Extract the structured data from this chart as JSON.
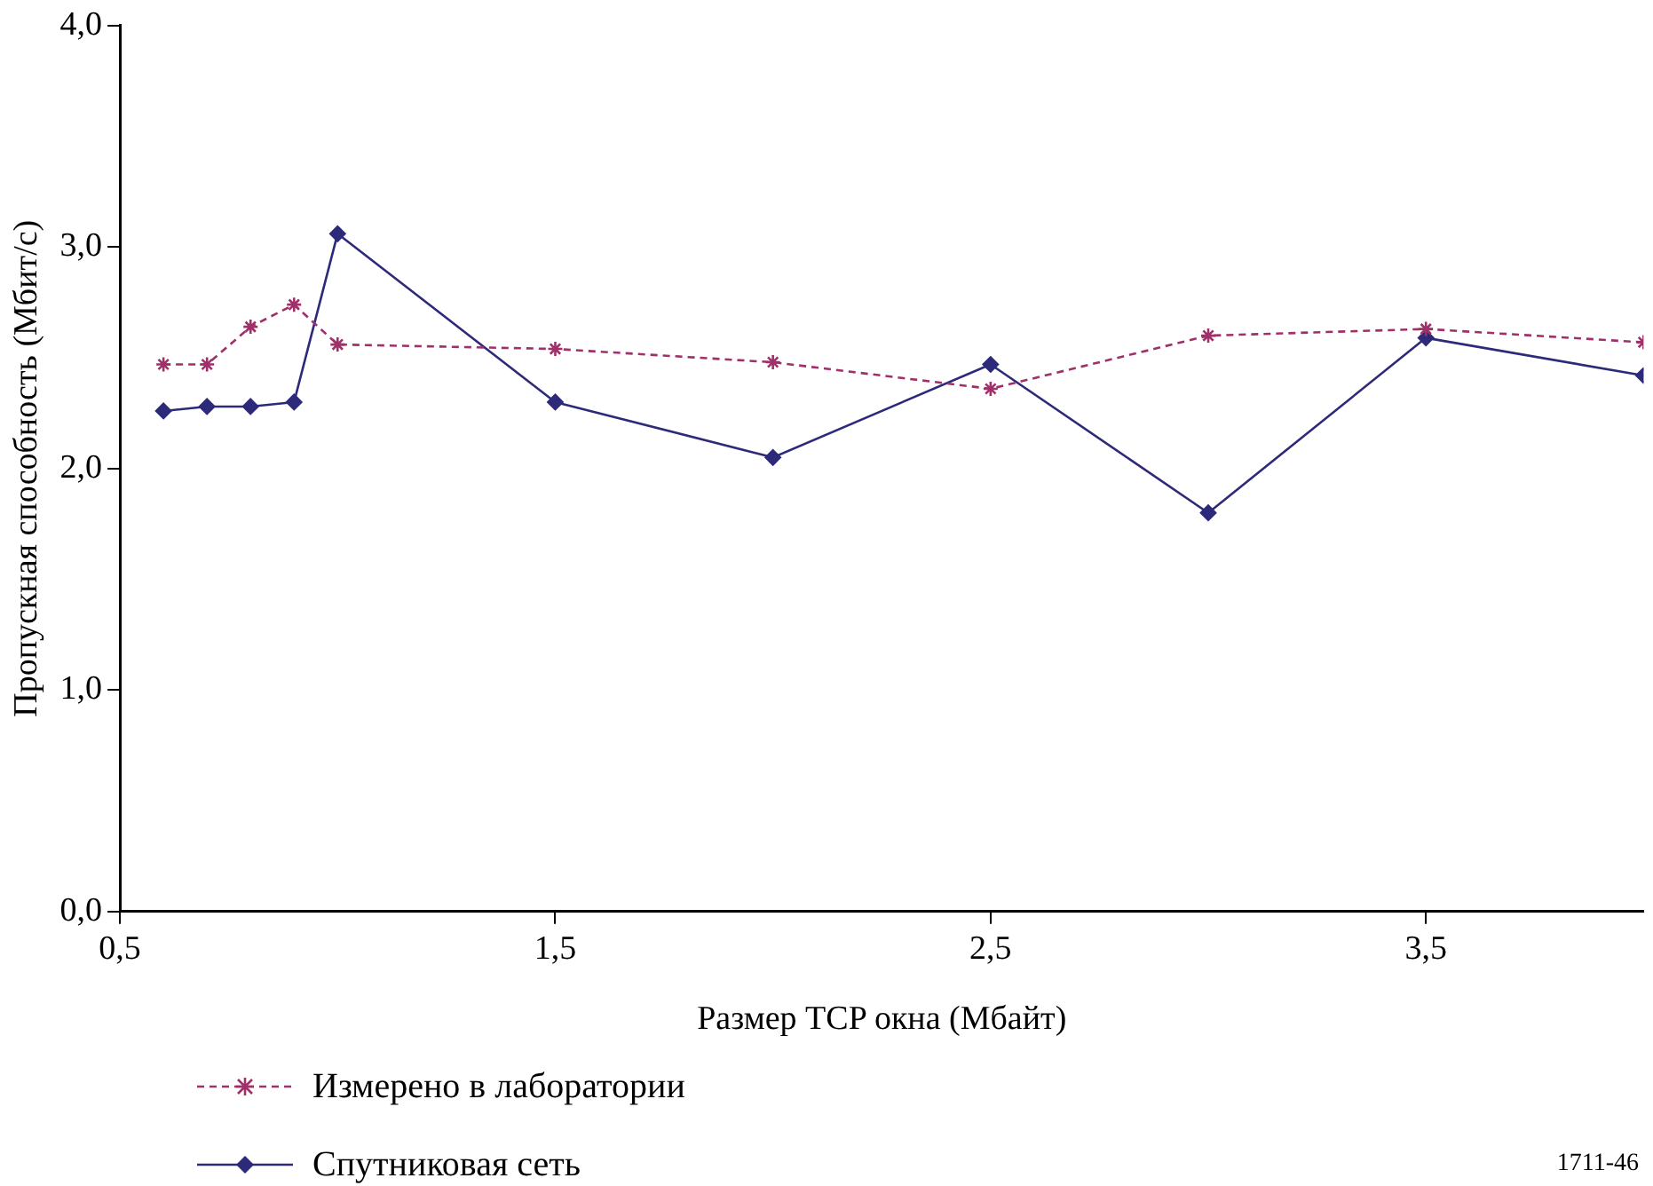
{
  "chart_data": {
    "type": "line",
    "xlabel": "Размер TCP окна (Мбайт)",
    "ylabel": "Пропускная способность (Мбит/с)",
    "xlim": [
      0.5,
      4.0
    ],
    "xticks": [
      {
        "value": 0.5,
        "label": "0,5"
      },
      {
        "value": 1.5,
        "label": "1,5"
      },
      {
        "value": 2.5,
        "label": "2,5"
      },
      {
        "value": 3.5,
        "label": "3,5"
      }
    ],
    "ylim": [
      0,
      4
    ],
    "yticks": [
      {
        "value": 0,
        "label": "0,0"
      },
      {
        "value": 1,
        "label": "1,0"
      },
      {
        "value": 2,
        "label": "2,0"
      },
      {
        "value": 3,
        "label": "3,0"
      },
      {
        "value": 4,
        "label": "4,0"
      }
    ],
    "grid": false,
    "legend": "bottom left",
    "x": [
      0.6,
      0.7,
      0.8,
      0.9,
      1.0,
      1.5,
      2.0,
      2.5,
      3.0,
      3.5,
      4.0
    ],
    "series": [
      {
        "name": "Измерено в лаборатории",
        "color": "#a0306a",
        "marker": "cross",
        "line_style": "dashed",
        "values": [
          2.47,
          2.47,
          2.64,
          2.74,
          2.56,
          2.54,
          2.48,
          2.36,
          2.6,
          2.63,
          2.57
        ]
      },
      {
        "name": "Спутниковая сеть",
        "color": "#2e2a7a",
        "marker": "diamond",
        "line_style": "solid",
        "values": [
          2.26,
          2.28,
          2.28,
          2.3,
          3.06,
          2.3,
          2.05,
          2.47,
          1.8,
          2.59,
          2.42
        ]
      }
    ],
    "annotations": [
      "1711-46"
    ]
  }
}
